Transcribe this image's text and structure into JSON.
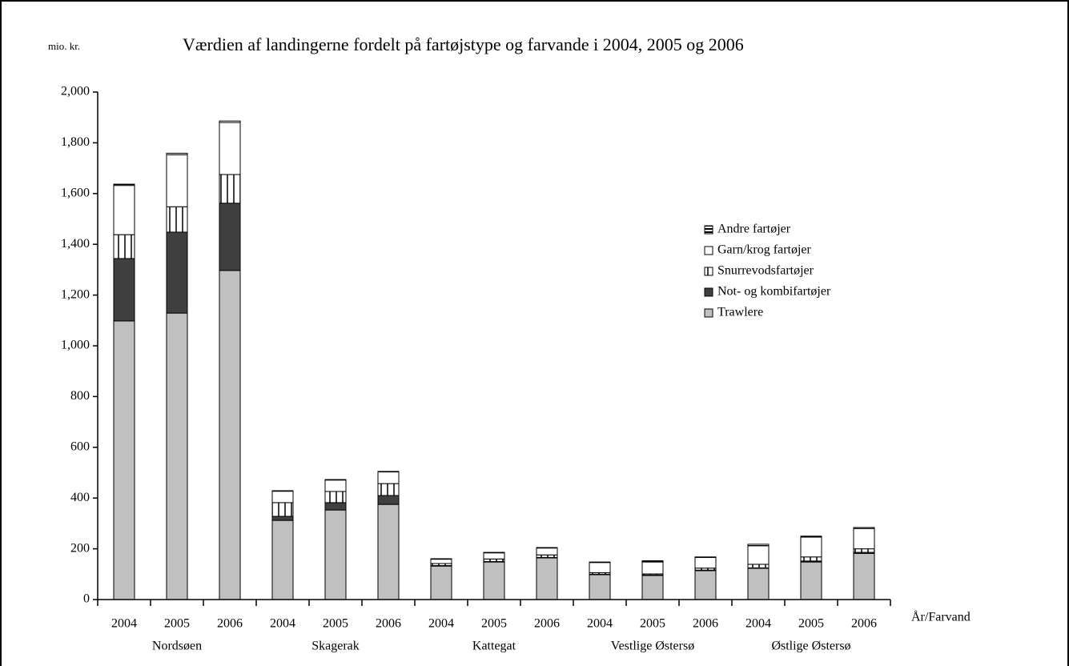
{
  "chart_data": {
    "type": "stacked_bar",
    "title": "Værdien af landingerne fordelt på fartøjstype og farvande i 2004, 2005 og 2006",
    "y_label": "mio. kr.",
    "x_label": "År/Farvand",
    "categories": [
      "2004",
      "2005",
      "2006",
      "2004",
      "2005",
      "2006",
      "2004",
      "2005",
      "2006",
      "2004",
      "2005",
      "2006",
      "2004",
      "2005",
      "2006"
    ],
    "groups": [
      {
        "name": "Nordsøen",
        "size": 3
      },
      {
        "name": "Skagerak",
        "size": 3
      },
      {
        "name": "Kattegat",
        "size": 3
      },
      {
        "name": "Vestlige Østersø",
        "size": 3
      },
      {
        "name": "Østlige Østersø",
        "size": 3
      }
    ],
    "series": [
      {
        "name": "Trawlere",
        "color": "#c0c0c0",
        "pattern": "solid",
        "values": [
          1098,
          1129,
          1297,
          312,
          353,
          375,
          132,
          148,
          164,
          98,
          95,
          114,
          123,
          148,
          182
        ]
      },
      {
        "name": "Not- og kombifartøjer",
        "color": "#404040",
        "pattern": "solid",
        "values": [
          246,
          319,
          265,
          16,
          29,
          35,
          2,
          2,
          2,
          2,
          2,
          2,
          2,
          4,
          4
        ]
      },
      {
        "name": "Snurrevodsfartøjer",
        "color": "#ffffff",
        "pattern": "vertical",
        "values": [
          94,
          100,
          113,
          54,
          44,
          47,
          8,
          10,
          10,
          6,
          4,
          8,
          14,
          16,
          14
        ]
      },
      {
        "name": "Garn/krog fartøjer",
        "color": "#ffffff",
        "pattern": "solid",
        "values": [
          194,
          205,
          205,
          45,
          45,
          46,
          17,
          24,
          27,
          40,
          47,
          42,
          73,
          78,
          80
        ]
      },
      {
        "name": "Andre fartøjer",
        "color": "#ffffff",
        "pattern": "horizontal",
        "values": [
          5,
          6,
          6,
          2,
          2,
          2,
          2,
          2,
          2,
          2,
          5,
          2,
          6,
          4,
          4
        ]
      }
    ],
    "ylim": [
      0,
      2000
    ],
    "yticks": [
      0,
      200,
      400,
      600,
      800,
      {
        "value": 1000,
        "label": "1,000"
      },
      {
        "value": 1200,
        "label": "1,200"
      },
      {
        "value": 1400,
        "label": "1,400"
      },
      {
        "value": 1600,
        "label": "1,600"
      },
      {
        "value": 1800,
        "label": "1,800"
      },
      {
        "value": 2000,
        "label": "2,000"
      }
    ],
    "grid": false,
    "legend": "right"
  }
}
